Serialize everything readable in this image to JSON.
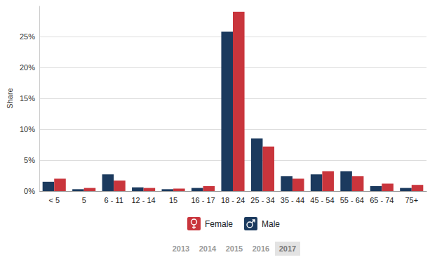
{
  "chart_data": {
    "type": "bar",
    "y_label": "Share",
    "categories": [
      "< 5",
      "5",
      "6 - 11",
      "12 - 14",
      "15",
      "16 - 17",
      "18 - 24",
      "25 - 34",
      "35 - 44",
      "45 - 54",
      "55 - 64",
      "65 - 74",
      "75+"
    ],
    "series": [
      {
        "name": "Male",
        "color": "#1b3a5e",
        "values": [
          1.5,
          0.3,
          2.7,
          0.6,
          0.3,
          0.5,
          25.8,
          8.5,
          2.4,
          2.7,
          3.2,
          0.8,
          0.5
        ]
      },
      {
        "name": "Female",
        "color": "#c9353c",
        "values": [
          2.0,
          0.5,
          1.7,
          0.5,
          0.4,
          0.8,
          29.0,
          7.2,
          2.0,
          3.2,
          2.4,
          1.2,
          1.0
        ]
      }
    ],
    "ylim": [
      0,
      30
    ],
    "yticks": [
      {
        "value": 0,
        "label": "0%"
      },
      {
        "value": 5,
        "label": "5%"
      },
      {
        "value": 10,
        "label": "10%"
      },
      {
        "value": 15,
        "label": "15%"
      },
      {
        "value": 20,
        "label": "20%"
      },
      {
        "value": 25,
        "label": "25%"
      }
    ],
    "grid": true,
    "legend": "bottom",
    "timeline": [
      "2013",
      "2014",
      "2015",
      "2016",
      "2017"
    ],
    "timeline_active": "2017"
  }
}
